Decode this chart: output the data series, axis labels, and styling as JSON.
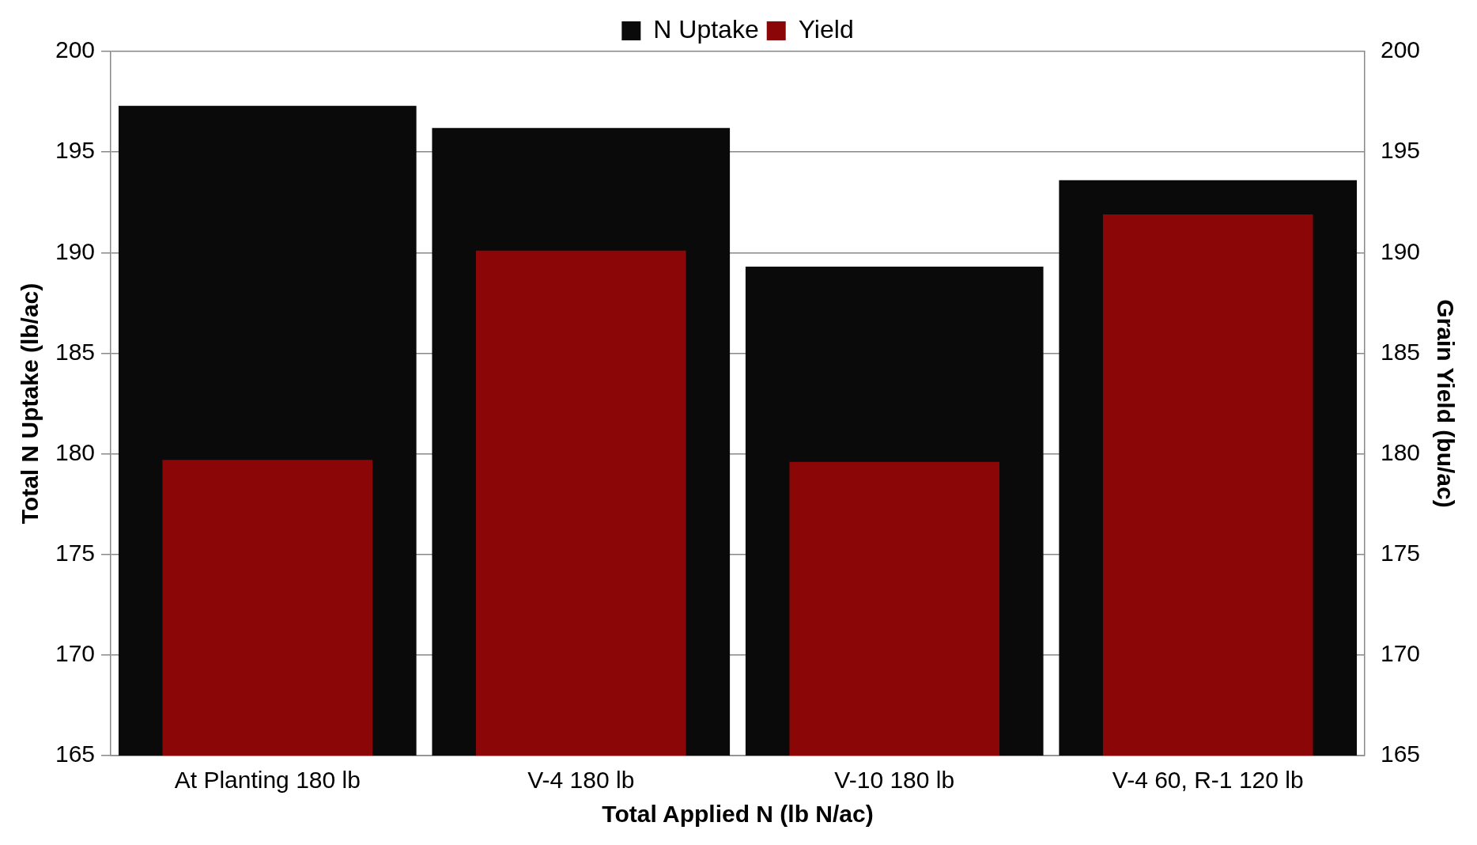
{
  "chart_data": {
    "type": "bar",
    "xlabel": "Total Applied N (lb N/ac)",
    "ylabel": "Total N Uptake (lb/ac)",
    "y2label": "Grain Yield (bu/ac)",
    "categories": [
      "At Planting 180 lb",
      "V-4 180 lb",
      "V-10 180 lb",
      "V-4 60, R-1 120 lb"
    ],
    "series": [
      {
        "name": "N Uptake",
        "color": "#0a0a0a",
        "values": [
          197.3,
          196.2,
          189.3,
          193.6
        ]
      },
      {
        "name": "Yield",
        "color": "#8b0606",
        "axis": "y2",
        "values": [
          179.7,
          190.1,
          179.6,
          191.9
        ]
      }
    ],
    "ylim": [
      165,
      200
    ],
    "yticks": [
      165,
      170,
      175,
      180,
      185,
      190,
      195,
      200
    ],
    "y2lim": [
      165,
      200
    ],
    "y2ticks": [
      165,
      170,
      175,
      180,
      185,
      190,
      195,
      200
    ],
    "grid": "y",
    "legend": "top"
  }
}
